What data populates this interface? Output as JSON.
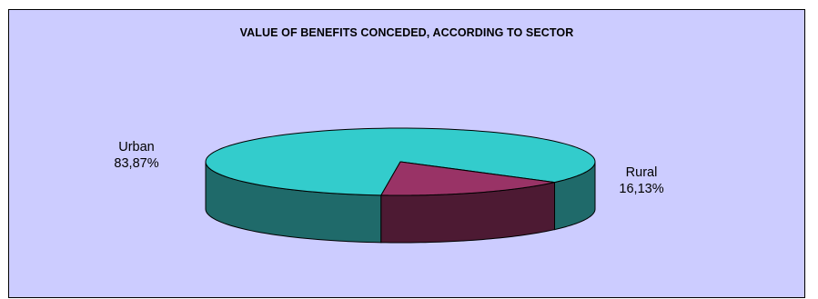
{
  "chart_data": {
    "type": "pie",
    "title": "VALUE OF BENEFITS CONCEDED, ACCORDING TO SECTOR",
    "three_d": true,
    "slices": [
      {
        "label": "Urban",
        "value": 83.87,
        "value_text": "83,87%",
        "color": "#33cccc",
        "side_color": "#1f6a6a"
      },
      {
        "label": "Rural",
        "value": 16.13,
        "value_text": "16,13%",
        "color": "#993366",
        "side_color": "#4d1a33"
      }
    ],
    "background_color": "#ccccff"
  }
}
